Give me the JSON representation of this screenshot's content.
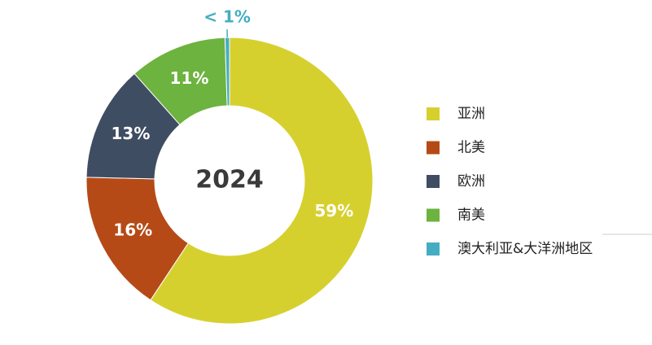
{
  "chart_data": {
    "type": "donut",
    "center_label": "2024",
    "categories": [
      "亚洲",
      "北美",
      "欧洲",
      "南美",
      "澳大利亚&大洋洲地区"
    ],
    "values": [
      59,
      16,
      13,
      11,
      0.5
    ],
    "value_labels": [
      "59%",
      "16%",
      "13%",
      "11%",
      "< 1%"
    ],
    "colors": [
      "#d6d02f",
      "#b54a17",
      "#3f4d63",
      "#6db33f",
      "#45adc2"
    ],
    "legend": "right"
  }
}
